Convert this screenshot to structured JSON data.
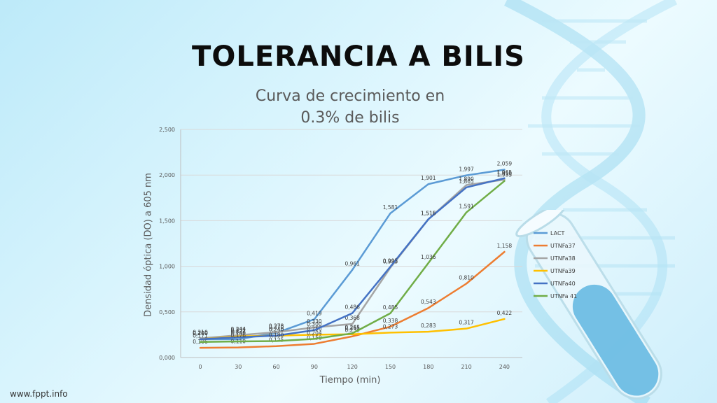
{
  "slide": {
    "title": "TOLERANCIA A BILIS",
    "footer": "www.fppt.info"
  },
  "colors": {
    "LACT": "#5b9bd5",
    "UTNFa37": "#ed7d31",
    "UTNFa38": "#a5a5a5",
    "UTNFa39": "#ffc000",
    "UTNFa40": "#4472c4",
    "UTNFa41": "#70ad47"
  },
  "chart_data": {
    "type": "line",
    "title_line1": "Curva de crecimiento en",
    "title_line2": "0.3% de bilis",
    "xlabel": "Tiempo (min)",
    "ylabel": "Densidad óptica (DO) a 605 nm",
    "x": [
      0,
      30,
      60,
      90,
      120,
      150,
      180,
      210,
      240
    ],
    "x_tick_labels": [
      "0",
      "30",
      "60",
      "90",
      "120",
      "150",
      "180",
      "210",
      "240"
    ],
    "y_tick_labels": [
      "0,000",
      "0,500",
      "1,000",
      "1,500",
      "2,000",
      "2,500"
    ],
    "y_ticks": [
      0,
      0.5,
      1,
      1.5,
      2,
      2.5
    ],
    "ylim": [
      0,
      2.5
    ],
    "grid": true,
    "legend": "right",
    "series": [
      {
        "name": "LACT",
        "values": [
          0.2,
          0.2,
          0.27,
          0.419,
          0.961,
          1.581,
          1.901,
          1.997,
          2.059
        ],
        "labels": [
          "0,200",
          "0,200",
          "0,270",
          "0,419",
          "0,961",
          "1,581",
          "1,901",
          "1,997",
          "2,059"
        ]
      },
      {
        "name": "UTNFa37",
        "values": [
          0.106,
          0.11,
          0.125,
          0.15,
          0.232,
          0.338,
          0.543,
          0.81,
          1.158
        ],
        "labels": [
          "0,106",
          "0,110",
          "0,125",
          "0,150",
          "0,232",
          "0,338",
          "0,543",
          "0,810",
          "1,158"
        ]
      },
      {
        "name": "UTNFa38",
        "values": [
          0.21,
          0.244,
          0.278,
          0.33,
          0.368,
          0.985,
          1.515,
          1.89,
          1.95
        ],
        "labels": [
          "0,210",
          "0,244",
          "0,278",
          "0,330",
          "0,368",
          "0,985",
          "1,515",
          "1,890",
          "1,950"
        ]
      },
      {
        "name": "UTNFa39",
        "values": [
          0.2,
          0.232,
          0.24,
          0.25,
          0.255,
          0.273,
          0.283,
          0.317,
          0.422
        ],
        "labels": [
          "0,200",
          "0,232",
          "0,240",
          "0,250",
          "0,255",
          "0,273",
          "0,283",
          "0,317",
          "0,422"
        ]
      },
      {
        "name": "UTNFa40",
        "values": [
          0.2,
          0.222,
          0.24,
          0.3,
          0.486,
          0.995,
          1.516,
          1.865,
          1.965
        ],
        "labels": [
          "0,200",
          "0,222",
          "0,240",
          "0,300",
          "0,486",
          "0,995",
          "1,516",
          "1,865",
          "1,965"
        ]
      },
      {
        "name": "UTNFa 41",
        "color_key": "UTNFa41",
        "values": [
          0.171,
          0.176,
          0.18,
          0.204,
          0.265,
          0.485,
          1.036,
          1.591,
          1.935
        ],
        "labels": [
          "0,171",
          "0,176",
          "0,180",
          "0,204",
          "0,265",
          "0,485",
          "1,036",
          "1,591",
          "1,935"
        ]
      }
    ]
  }
}
